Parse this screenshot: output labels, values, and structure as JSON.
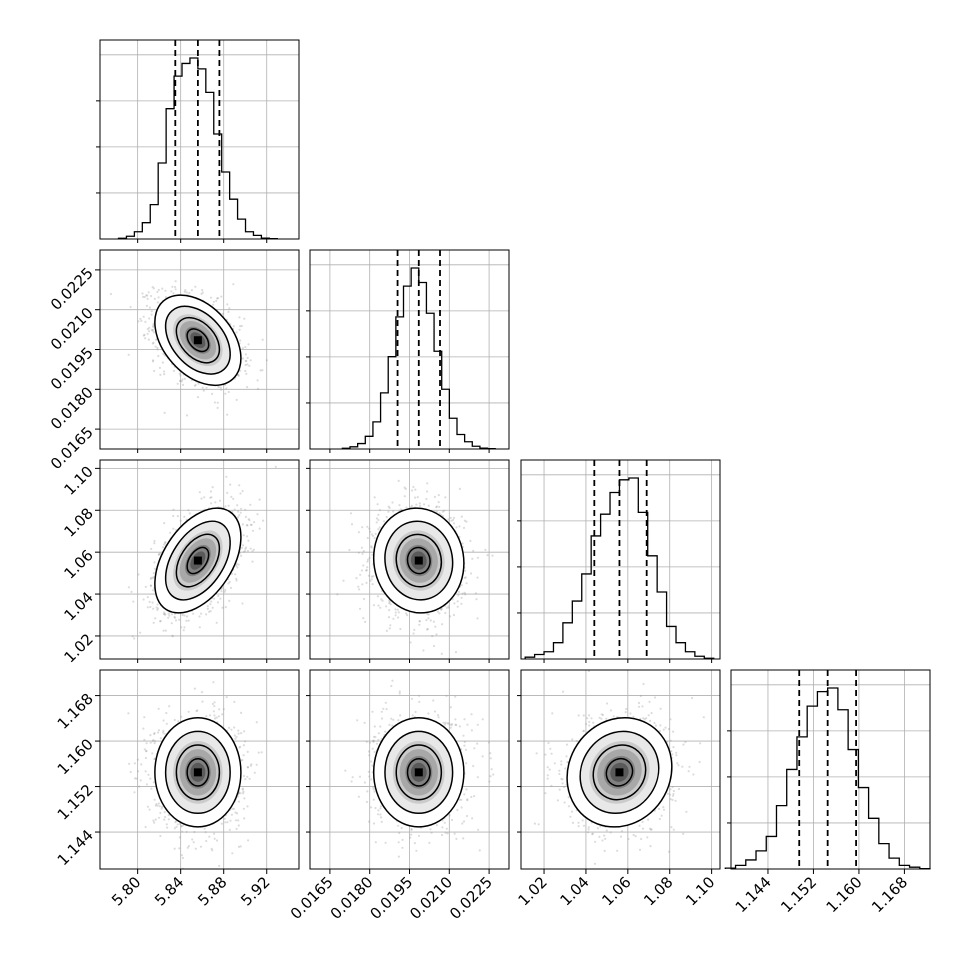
{
  "chart_data": {
    "type": "corner",
    "variables": [
      {
        "range": [
          5.765,
          5.95
        ],
        "ticks": [
          5.8,
          5.84,
          5.88,
          5.92
        ],
        "tick_labels": [
          "5.80",
          "5.84",
          "5.88",
          "5.92"
        ]
      },
      {
        "range": [
          0.01575,
          0.02325
        ],
        "ticks": [
          0.0165,
          0.018,
          0.0195,
          0.021,
          0.0225
        ],
        "tick_labels": [
          "0.0165",
          "0.0180",
          "0.0195",
          "0.0210",
          "0.0225"
        ]
      },
      {
        "range": [
          1.009,
          1.104
        ],
        "ticks": [
          1.02,
          1.04,
          1.06,
          1.08,
          1.1
        ],
        "tick_labels": [
          "1.02",
          "1.04",
          "1.06",
          "1.08",
          "1.10"
        ]
      },
      {
        "range": [
          1.1375,
          1.1725
        ],
        "ticks": [
          1.144,
          1.152,
          1.16,
          1.168
        ],
        "tick_labels": [
          "1.144",
          "1.152",
          "1.160",
          "1.168"
        ]
      }
    ],
    "quantiles": [
      [
        5.835,
        5.856,
        5.876
      ],
      [
        0.01905,
        0.01985,
        0.02065
      ],
      [
        1.044,
        1.056,
        1.069
      ],
      [
        1.1495,
        1.1545,
        1.1595
      ]
    ],
    "histograms": [
      [
        0.004,
        0.015,
        0.04,
        0.09,
        0.19,
        0.42,
        0.72,
        0.9,
        0.97,
        1.0,
        0.94,
        0.81,
        0.58,
        0.37,
        0.22,
        0.11,
        0.04,
        0.02,
        0.005,
        0.002
      ],
      [
        0.004,
        0.012,
        0.03,
        0.07,
        0.15,
        0.31,
        0.51,
        0.73,
        0.9,
        1.0,
        0.92,
        0.75,
        0.54,
        0.33,
        0.17,
        0.08,
        0.04,
        0.015,
        0.005,
        0.002
      ],
      [
        0.01,
        0.025,
        0.04,
        0.09,
        0.2,
        0.32,
        0.47,
        0.68,
        0.8,
        0.92,
        0.99,
        1.0,
        0.81,
        0.57,
        0.37,
        0.18,
        0.09,
        0.04,
        0.015,
        0.004
      ],
      [
        0.005,
        0.02,
        0.05,
        0.1,
        0.18,
        0.35,
        0.55,
        0.73,
        0.9,
        0.98,
        1.0,
        0.88,
        0.66,
        0.45,
        0.28,
        0.14,
        0.06,
        0.02,
        0.01,
        0.002
      ]
    ],
    "pairs": [
      {
        "x": 0,
        "y": 1,
        "mean": [
          5.856,
          0.01985
        ],
        "sd": [
          0.02,
          0.00085
        ],
        "rho": -0.4
      },
      {
        "x": 0,
        "y": 2,
        "mean": [
          5.856,
          1.056
        ],
        "sd": [
          0.02,
          0.0125
        ],
        "rho": 0.45
      },
      {
        "x": 1,
        "y": 2,
        "mean": [
          0.01985,
          1.056
        ],
        "sd": [
          0.00085,
          0.0125
        ],
        "rho": -0.05
      },
      {
        "x": 0,
        "y": 3,
        "mean": [
          5.856,
          1.1545
        ],
        "sd": [
          0.02,
          0.0048
        ],
        "rho": 0.0
      },
      {
        "x": 1,
        "y": 3,
        "mean": [
          0.01985,
          1.1545
        ],
        "sd": [
          0.00085,
          0.0048
        ],
        "rho": 0.0
      },
      {
        "x": 2,
        "y": 3,
        "mean": [
          1.056,
          1.1545
        ],
        "sd": [
          0.0125,
          0.0048
        ],
        "rho": 0.1
      }
    ],
    "contour_levels_sigma": [
      0.5,
      1.0,
      1.5,
      2.0
    ],
    "grid": true,
    "colors": {
      "line": "#000000",
      "grid": "#b0b0b0",
      "points": "#9a9a9a",
      "background": "#ffffff"
    }
  }
}
